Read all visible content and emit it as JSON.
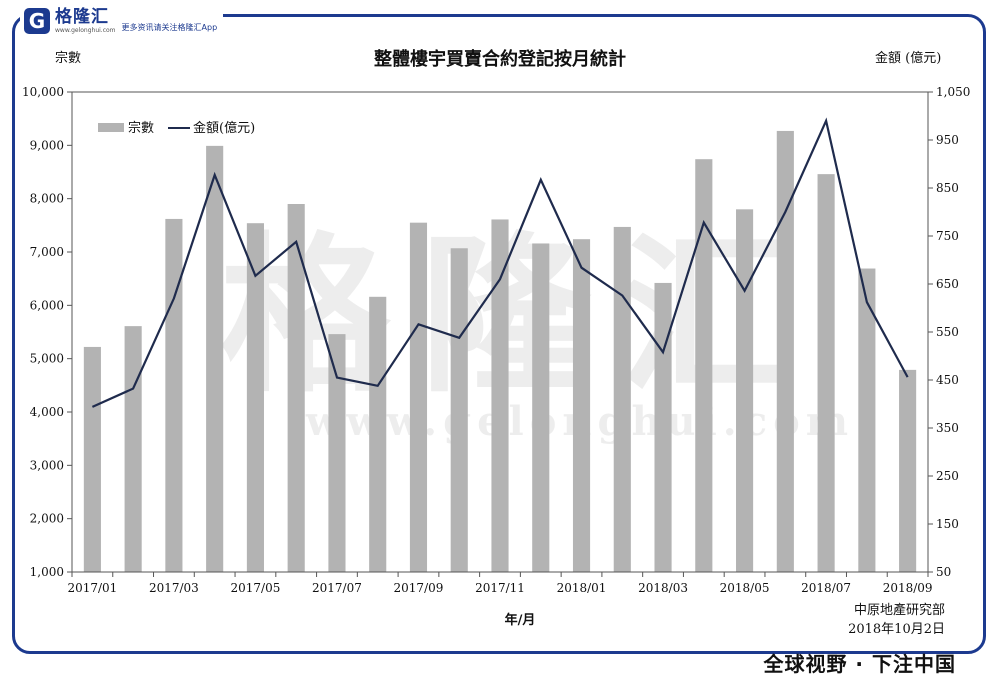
{
  "brand": {
    "logo_letter": "G",
    "name": "格隆汇",
    "url": "www.gelonghui.com",
    "tagline": "更多资讯请关注格隆汇App"
  },
  "watermark": {
    "text": "格隆汇",
    "url": "www.gelonghui.com"
  },
  "slogan": "全球视野 · 下注中国",
  "source": {
    "line1": "中原地產研究部",
    "line2": "2018年10月2日"
  },
  "colors": {
    "bar": "#b3b3b3",
    "line": "#1f2b4d",
    "frame": "#1c3a8f"
  },
  "chart_data": {
    "type": "bar",
    "title": "整體樓宇買賣合約登記按月統計",
    "xlabel": "年/月",
    "ylabel_left": "宗數",
    "ylabel_right": "金額 (億元)",
    "left_axis": {
      "min": 1000,
      "max": 10000,
      "step": 1000,
      "ticks": [
        "1,000",
        "2,000",
        "3,000",
        "4,000",
        "5,000",
        "6,000",
        "7,000",
        "8,000",
        "9,000",
        "10,000"
      ]
    },
    "right_axis": {
      "min": 50,
      "max": 1050,
      "step": 100,
      "ticks": [
        "50",
        "150",
        "250",
        "350",
        "450",
        "550",
        "650",
        "750",
        "850",
        "950",
        "1,050"
      ]
    },
    "x_tick_labels": [
      "2017/01",
      "2017/03",
      "2017/05",
      "2017/07",
      "2017/09",
      "2017/11",
      "2018/01",
      "2018/03",
      "2018/05",
      "2018/07",
      "2018/09"
    ],
    "legend": [
      "宗數",
      "金額(億元)"
    ],
    "legend_position": "top-left",
    "categories": [
      "2017/01",
      "2017/02",
      "2017/03",
      "2017/04",
      "2017/05",
      "2017/06",
      "2017/07",
      "2017/08",
      "2017/09",
      "2017/10",
      "2017/11",
      "2017/12",
      "2018/01",
      "2018/02",
      "2018/03",
      "2018/04",
      "2018/05",
      "2018/06",
      "2018/07",
      "2018/08",
      "2018/09"
    ],
    "series": [
      {
        "name": "宗數",
        "kind": "bar",
        "axis": "left",
        "values": [
          5220,
          5610,
          7620,
          8990,
          7540,
          7900,
          5460,
          6160,
          7550,
          7070,
          7610,
          7160,
          7240,
          7470,
          6420,
          8740,
          7800,
          9270,
          8460,
          6690,
          4790
        ]
      },
      {
        "name": "金額(億元)",
        "kind": "line",
        "axis": "right",
        "values": [
          394,
          432,
          620,
          877,
          667,
          738,
          455,
          438,
          566,
          538,
          660,
          867,
          684,
          626,
          508,
          778,
          636,
          800,
          990,
          612,
          456
        ]
      }
    ]
  }
}
